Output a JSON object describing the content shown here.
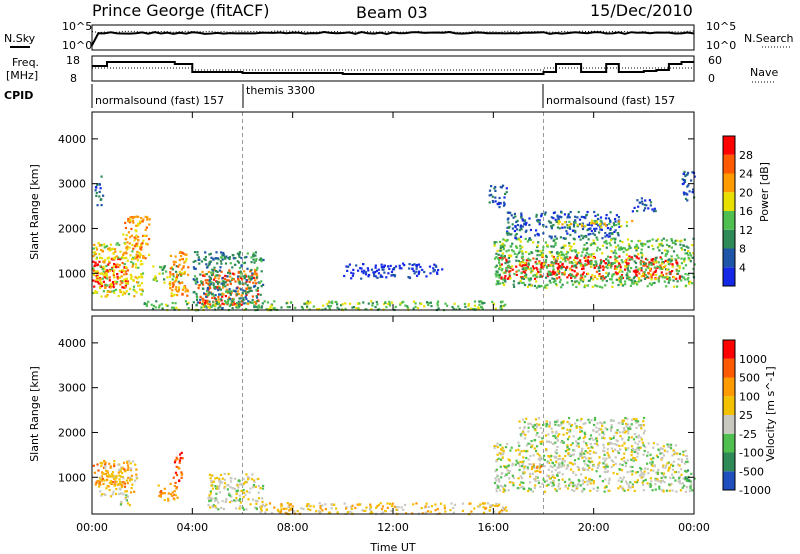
{
  "header": {
    "station": "Prince George (fitACF)",
    "beam": "Beam 03",
    "date": "15/Dec/2010"
  },
  "top_panels": {
    "nsky_label": "N.Sky",
    "nsearch_label": "N.Search",
    "count_ticks": [
      "10^5",
      "10^0"
    ],
    "freq_label_1": "Freq.",
    "freq_label_2": "[MHz]",
    "freq_ticks": [
      "18",
      "8"
    ],
    "nave_label": "Nave",
    "nave_ticks": [
      "60",
      "0"
    ],
    "cpid_label": "CPID",
    "cpid_segments": [
      {
        "label": "normalsound (fast) 157",
        "start_hour": 0
      },
      {
        "label": "themis 3300",
        "start_hour": 6
      },
      {
        "label": "normalsound (fast) 157",
        "start_hour": 18
      }
    ]
  },
  "time_axis": {
    "label": "Time UT",
    "ticks": [
      "00:00",
      "04:00",
      "08:00",
      "12:00",
      "16:00",
      "20:00",
      "00:00"
    ]
  },
  "chart_data": [
    {
      "type": "heatmap",
      "name": "Power",
      "ylabel": "Slant Range [km]",
      "xlabel": "Time UT",
      "ylim": [
        180,
        4600
      ],
      "xlim_hours": [
        0,
        24
      ],
      "y_ticks": [
        "1000",
        "2000",
        "3000",
        "4000"
      ],
      "colorbar_label": "Power [dB]",
      "colorbar_ticks": [
        "4",
        "8",
        "12",
        "16",
        "20",
        "24",
        "28"
      ],
      "colorbar_colors": [
        "#1428e6",
        "#1f55a8",
        "#2e8b57",
        "#4fc04f",
        "#e8e000",
        "#ff9a00",
        "#ff5a00",
        "#ff0000"
      ],
      "regions": [
        {
          "t0": 0.0,
          "t1": 1.4,
          "r0": 700,
          "r1": 1350,
          "level": 7
        },
        {
          "t0": 0.0,
          "t1": 2.0,
          "r0": 500,
          "r1": 1700,
          "level": 4
        },
        {
          "t0": 1.2,
          "t1": 2.3,
          "r0": 1350,
          "r1": 2300,
          "level": 5
        },
        {
          "t0": 0.1,
          "t1": 0.4,
          "r0": 2500,
          "r1": 3200,
          "level": 1
        },
        {
          "t0": 2.4,
          "t1": 3.6,
          "r0": 800,
          "r1": 1200,
          "level": 3
        },
        {
          "t0": 3.0,
          "t1": 3.8,
          "r0": 500,
          "r1": 1500,
          "level": 5
        },
        {
          "t0": 4.2,
          "t1": 6.6,
          "r0": 300,
          "r1": 1100,
          "level": 6
        },
        {
          "t0": 4.0,
          "t1": 6.8,
          "r0": 200,
          "r1": 1500,
          "level": 2
        },
        {
          "t0": 2.0,
          "t1": 16.5,
          "r0": 200,
          "r1": 400,
          "level": 3
        },
        {
          "t0": 10.0,
          "t1": 14.0,
          "r0": 900,
          "r1": 1250,
          "level": 0
        },
        {
          "t0": 16.2,
          "t1": 23.4,
          "r0": 900,
          "r1": 1400,
          "level": 7
        },
        {
          "t0": 16.0,
          "t1": 24.0,
          "r0": 700,
          "r1": 1800,
          "level": 3
        },
        {
          "t0": 16.5,
          "t1": 21.0,
          "r0": 1800,
          "r1": 2400,
          "level": 1
        },
        {
          "t0": 18.5,
          "t1": 21.5,
          "r0": 2050,
          "r1": 2200,
          "level": 4
        },
        {
          "t0": 15.8,
          "t1": 16.5,
          "r0": 2500,
          "r1": 3000,
          "level": 1
        },
        {
          "t0": 21.5,
          "t1": 22.5,
          "r0": 2400,
          "r1": 2700,
          "level": 1
        },
        {
          "t0": 23.5,
          "t1": 24.0,
          "r0": 2600,
          "r1": 3300,
          "level": 1
        }
      ]
    },
    {
      "type": "heatmap",
      "name": "Velocity",
      "ylabel": "Slant Range [km]",
      "xlabel": "Time UT",
      "ylim": [
        180,
        4600
      ],
      "xlim_hours": [
        0,
        24
      ],
      "y_ticks": [
        "1000",
        "2000",
        "3000",
        "4000"
      ],
      "colorbar_label": "Velocity [m s^-1]",
      "colorbar_ticks": [
        "1000",
        "500",
        "100",
        "25",
        "-25",
        "-100",
        "-500",
        "-1000"
      ],
      "colorbar_colors": [
        "#1f4fbf",
        "#2e8b57",
        "#4fc04f",
        "#c8c8c0",
        "#f2c200",
        "#ff9a00",
        "#ff5a00",
        "#ff0000"
      ],
      "regions": [
        {
          "t0": 0.0,
          "t1": 1.4,
          "r0": 800,
          "r1": 1350,
          "level": 5
        },
        {
          "t0": 0.2,
          "t1": 1.8,
          "r0": 600,
          "r1": 1400,
          "level": 4
        },
        {
          "t0": 1.1,
          "t1": 1.6,
          "r0": 400,
          "r1": 700,
          "level": 3
        },
        {
          "t0": 3.2,
          "t1": 3.6,
          "r0": 800,
          "r1": 1600,
          "level": 6
        },
        {
          "t0": 2.6,
          "t1": 3.4,
          "r0": 500,
          "r1": 900,
          "level": 5
        },
        {
          "t0": 4.6,
          "t1": 6.8,
          "r0": 300,
          "r1": 1100,
          "level": 3
        },
        {
          "t0": 6.6,
          "t1": 16.5,
          "r0": 200,
          "r1": 450,
          "level": 4
        },
        {
          "t0": 16.0,
          "t1": 23.8,
          "r0": 700,
          "r1": 1800,
          "level": 3
        },
        {
          "t0": 17.0,
          "t1": 22.0,
          "r0": 1800,
          "r1": 2350,
          "level": 3
        },
        {
          "t0": 17.5,
          "t1": 18.0,
          "r0": 1100,
          "r1": 1350,
          "level": 5
        },
        {
          "t0": 23.6,
          "t1": 24.0,
          "r0": 700,
          "r1": 1200,
          "level": 2
        }
      ]
    }
  ]
}
